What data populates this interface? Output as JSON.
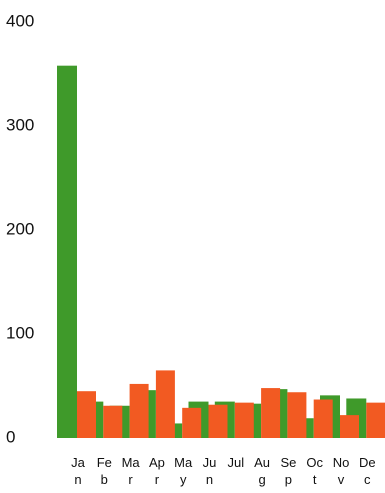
{
  "chart_data": {
    "type": "bar",
    "categories": [
      "Jan",
      "Feb",
      "Mar",
      "Apr",
      "May",
      "Jun",
      "Jul",
      "Aug",
      "Sep",
      "Oct",
      "Nov",
      "Dec"
    ],
    "series": [
      {
        "color": "#3f9a2a",
        "values": [
          358,
          35,
          31,
          46,
          14,
          35,
          35,
          33,
          47,
          19,
          41,
          38
        ]
      },
      {
        "color": "#f25a22",
        "values": [
          45,
          31,
          52,
          65,
          29,
          32,
          34,
          48,
          44,
          37,
          22,
          34
        ]
      }
    ],
    "ylim": [
      0,
      400
    ],
    "yticks": [
      0,
      100,
      200,
      300,
      400
    ],
    "grid": false
  }
}
